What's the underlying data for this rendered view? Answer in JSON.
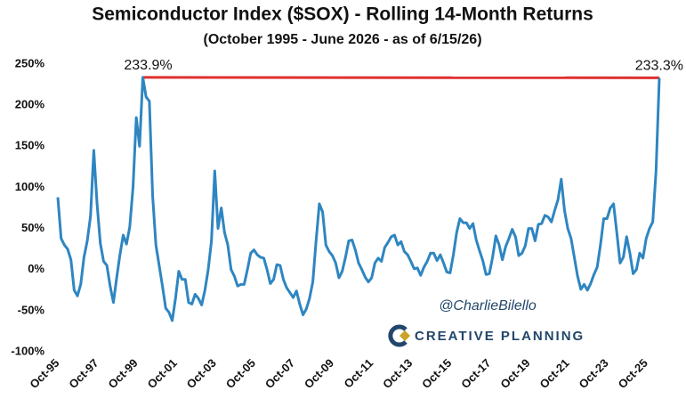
{
  "chart_data": {
    "type": "line",
    "title": "Semiconductor Index ($SOX) - Rolling 14-Month Returns",
    "subtitle": "(October 1995 - June 2026 - as of 6/15/26)",
    "x": [
      "Oct-95",
      "Dec-95",
      "Feb-96",
      "Apr-96",
      "Jun-96",
      "Aug-96",
      "Oct-96",
      "Dec-96",
      "Feb-97",
      "Apr-97",
      "Jun-97",
      "Aug-97",
      "Oct-97",
      "Dec-97",
      "Feb-98",
      "Apr-98",
      "Jun-98",
      "Aug-98",
      "Oct-98",
      "Dec-98",
      "Feb-99",
      "Apr-99",
      "Jun-99",
      "Aug-99",
      "Oct-99",
      "Dec-99",
      "Feb-00",
      "Apr-00",
      "Jun-00",
      "Aug-00",
      "Oct-00",
      "Dec-00",
      "Feb-01",
      "Apr-01",
      "Jun-01",
      "Aug-01",
      "Oct-01",
      "Dec-01",
      "Feb-02",
      "Apr-02",
      "Jun-02",
      "Aug-02",
      "Oct-02",
      "Dec-02",
      "Feb-03",
      "Apr-03",
      "Jun-03",
      "Aug-03",
      "Oct-03",
      "Dec-03",
      "Feb-04",
      "Apr-04",
      "Jun-04",
      "Aug-04",
      "Oct-04",
      "Dec-04",
      "Feb-05",
      "Apr-05",
      "Jun-05",
      "Aug-05",
      "Oct-05",
      "Dec-05",
      "Feb-06",
      "Apr-06",
      "Jun-06",
      "Aug-06",
      "Oct-06",
      "Dec-06",
      "Feb-07",
      "Apr-07",
      "Jun-07",
      "Aug-07",
      "Oct-07",
      "Dec-07",
      "Feb-08",
      "Apr-08",
      "Jun-08",
      "Aug-08",
      "Oct-08",
      "Dec-08",
      "Feb-09",
      "Apr-09",
      "Jun-09",
      "Aug-09",
      "Oct-09",
      "Dec-09",
      "Feb-10",
      "Apr-10",
      "Jun-10",
      "Aug-10",
      "Oct-10",
      "Dec-10",
      "Feb-11",
      "Apr-11",
      "Jun-11",
      "Aug-11",
      "Oct-11",
      "Dec-11",
      "Feb-12",
      "Apr-12",
      "Jun-12",
      "Aug-12",
      "Oct-12",
      "Dec-12",
      "Feb-13",
      "Apr-13",
      "Jun-13",
      "Aug-13",
      "Oct-13",
      "Dec-13",
      "Feb-14",
      "Apr-14",
      "Jun-14",
      "Aug-14",
      "Oct-14",
      "Dec-14",
      "Feb-15",
      "Apr-15",
      "Jun-15",
      "Aug-15",
      "Oct-15",
      "Dec-15",
      "Feb-16",
      "Apr-16",
      "Jun-16",
      "Aug-16",
      "Oct-16",
      "Dec-16",
      "Feb-17",
      "Apr-17",
      "Jun-17",
      "Aug-17",
      "Oct-17",
      "Dec-17",
      "Feb-18",
      "Apr-18",
      "Jun-18",
      "Aug-18",
      "Oct-18",
      "Dec-18",
      "Feb-19",
      "Apr-19",
      "Jun-19",
      "Aug-19",
      "Oct-19",
      "Dec-19",
      "Feb-20",
      "Apr-20",
      "Jun-20",
      "Aug-20",
      "Oct-20",
      "Dec-20",
      "Feb-21",
      "Apr-21",
      "Jun-21",
      "Aug-21",
      "Oct-21",
      "Dec-21",
      "Feb-22",
      "Apr-22",
      "Jun-22",
      "Aug-22",
      "Oct-22",
      "Dec-22",
      "Feb-23",
      "Apr-23",
      "Jun-23",
      "Aug-23",
      "Oct-23",
      "Dec-23",
      "Feb-24",
      "Apr-24",
      "Jun-24",
      "Aug-24",
      "Oct-24",
      "Dec-24",
      "Feb-25",
      "Apr-25",
      "Jun-25",
      "Aug-25",
      "Oct-25",
      "Dec-25",
      "Feb-26",
      "Apr-26",
      "Jun-26"
    ],
    "series": [
      {
        "name": "$SOX Rolling 14-Month Return",
        "color": "#2e86c1",
        "values": [
          88,
          38,
          30,
          25,
          12,
          -25,
          -32,
          -18,
          15,
          35,
          65,
          145,
          80,
          32,
          10,
          5,
          -20,
          -40,
          -10,
          18,
          42,
          31,
          52,
          100,
          185,
          150,
          233.9,
          210,
          205,
          90,
          30,
          5,
          -20,
          -47,
          -52,
          -62,
          -35,
          -2,
          -12,
          -12,
          -40,
          -42,
          -30,
          -35,
          -43,
          -25,
          0,
          35,
          120,
          50,
          75,
          45,
          30,
          0,
          -8,
          -20,
          -18,
          -18,
          0,
          20,
          24,
          18,
          15,
          14,
          0,
          -17,
          -12,
          6,
          5,
          -12,
          -22,
          -28,
          -34,
          -26,
          -42,
          -55,
          -48,
          -35,
          -15,
          35,
          80,
          70,
          30,
          22,
          17,
          8,
          -10,
          -2,
          15,
          35,
          36,
          24,
          8,
          0,
          -9,
          -15,
          -10,
          8,
          14,
          10,
          27,
          33,
          40,
          42,
          30,
          34,
          22,
          18,
          10,
          1,
          2,
          -7,
          3,
          10,
          20,
          20,
          11,
          18,
          8,
          -3,
          -4,
          18,
          45,
          62,
          57,
          57,
          50,
          56,
          36,
          23,
          11,
          -6,
          -5,
          15,
          41,
          30,
          12,
          28,
          38,
          49,
          40,
          17,
          20,
          29,
          50,
          50,
          35,
          55,
          56,
          66,
          64,
          58,
          72,
          85,
          110,
          72,
          50,
          38,
          15,
          -8,
          -24,
          -18,
          -25,
          -17,
          -6,
          3,
          30,
          62,
          62,
          75,
          80,
          45,
          8,
          15,
          40,
          20,
          -5,
          0,
          20,
          14,
          38,
          50,
          58,
          120,
          233.3
        ]
      }
    ],
    "xlim": [
      "Oct-95",
      "Jun-26"
    ],
    "xticks": [
      "Oct-95",
      "Oct-97",
      "Oct-99",
      "Oct-01",
      "Oct-03",
      "Oct-05",
      "Oct-07",
      "Oct-09",
      "Oct-11",
      "Oct-13",
      "Oct-15",
      "Oct-17",
      "Oct-19",
      "Oct-21",
      "Oct-23",
      "Oct-25"
    ],
    "ylim": [
      -100,
      250
    ],
    "yticks": [
      {
        "value": 250,
        "label": "250%"
      },
      {
        "value": 200,
        "label": "200%"
      },
      {
        "value": 150,
        "label": "150%"
      },
      {
        "value": 100,
        "label": "100%"
      },
      {
        "value": 50,
        "label": "50%"
      },
      {
        "value": 0,
        "label": "0%"
      },
      {
        "value": -50,
        "label": "-50%"
      },
      {
        "value": -100,
        "label": "-100%"
      }
    ],
    "grid": false,
    "annotations": [
      {
        "x": "Feb-00",
        "y": 233.9,
        "text": "233.9%"
      },
      {
        "x": "Jun-26",
        "y": 233.3,
        "text": "233.3%"
      }
    ],
    "connector_color": "#e03030",
    "watermarks": {
      "handle": "@CharlieBilello",
      "brand": "CREATIVE PLANNING"
    }
  }
}
